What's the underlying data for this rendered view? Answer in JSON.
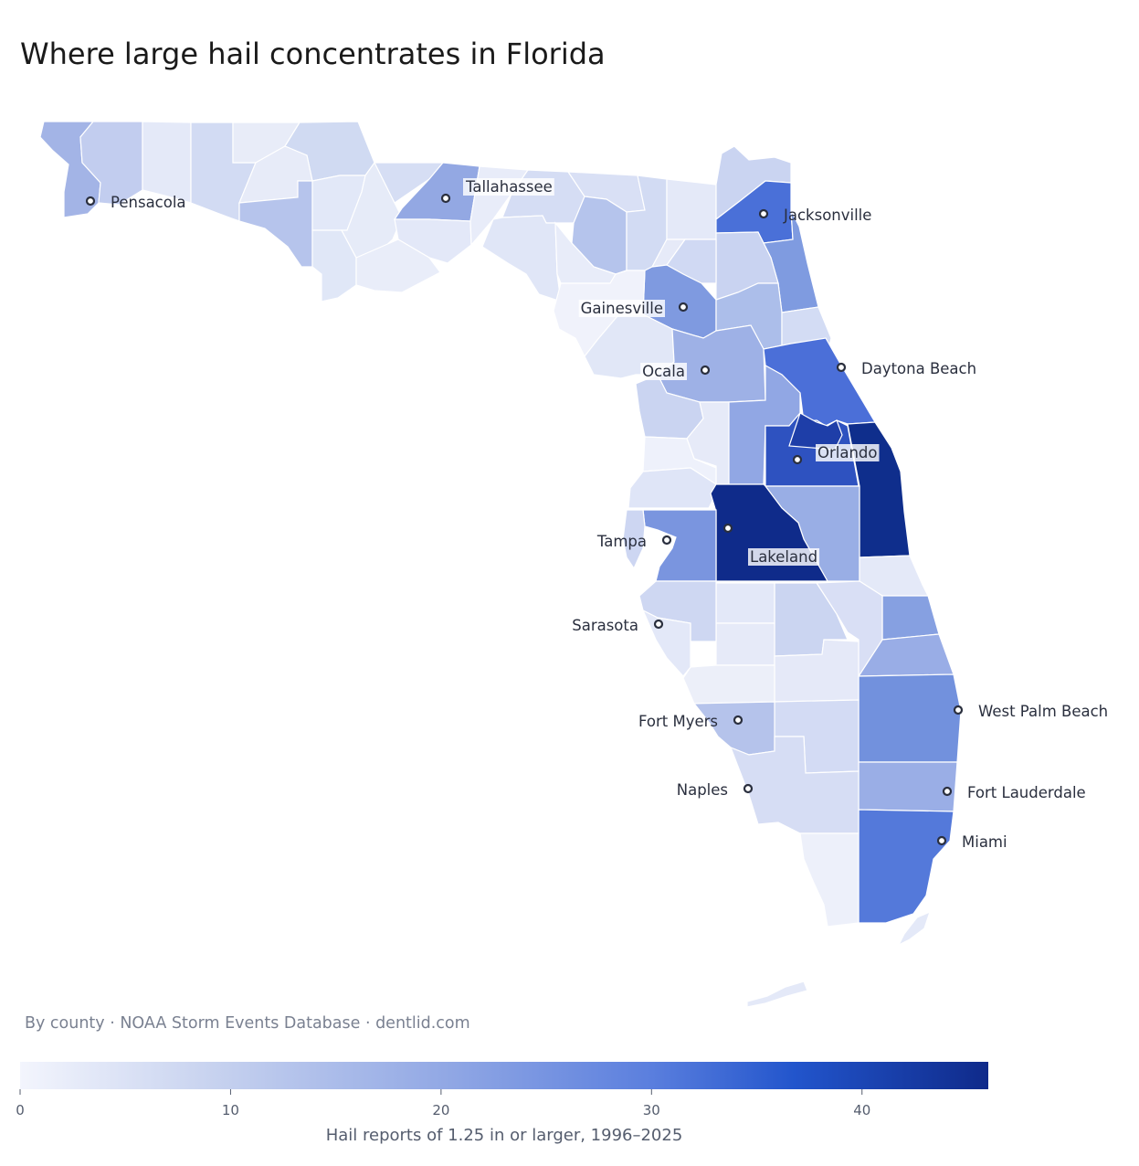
{
  "title": "Where large hail concentrates in Florida",
  "caption": "By county · NOAA Storm Events Database · dentlid.com",
  "colorbar": {
    "title": "Hail reports of 1.25 in or larger, 1996–2025",
    "min": 0,
    "max": 46,
    "ticks": [
      0,
      10,
      20,
      30,
      40
    ],
    "colors": [
      "#f3f5fd",
      "#c7d2ef",
      "#8fa6e4",
      "#5b7fde",
      "#2255cc",
      "#0f2a8a"
    ]
  },
  "cities": [
    {
      "name": "Pensacola",
      "label_side": "right"
    },
    {
      "name": "Tallahassee",
      "label_side": "right"
    },
    {
      "name": "Jacksonville",
      "label_side": "right"
    },
    {
      "name": "Gainesville",
      "label_side": "left"
    },
    {
      "name": "Ocala",
      "label_side": "left"
    },
    {
      "name": "Daytona Beach",
      "label_side": "right"
    },
    {
      "name": "Orlando",
      "label_side": "right"
    },
    {
      "name": "Tampa",
      "label_side": "left"
    },
    {
      "name": "Lakeland",
      "label_side": "right"
    },
    {
      "name": "Sarasota",
      "label_side": "left"
    },
    {
      "name": "Fort Myers",
      "label_side": "left"
    },
    {
      "name": "West Palm Beach",
      "label_side": "right"
    },
    {
      "name": "Naples",
      "label_side": "left"
    },
    {
      "name": "Fort Lauderdale",
      "label_side": "right"
    },
    {
      "name": "Miami",
      "label_side": "right"
    }
  ]
}
